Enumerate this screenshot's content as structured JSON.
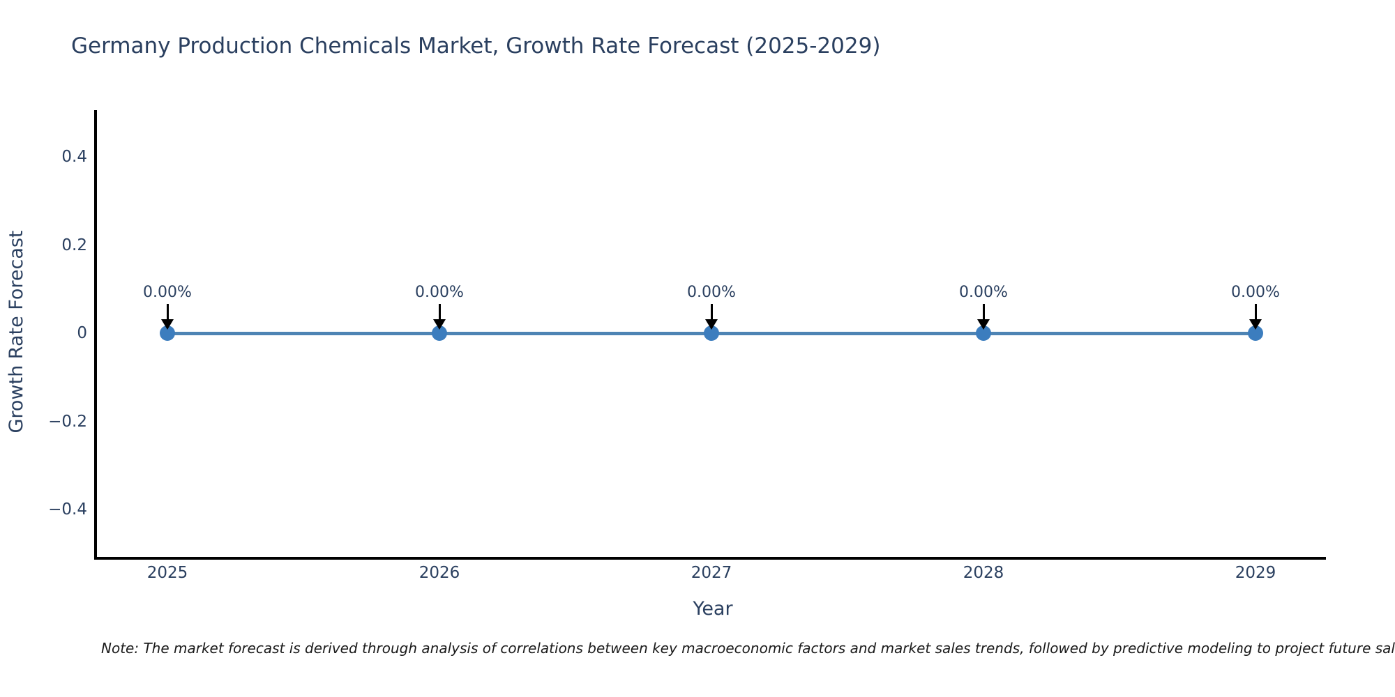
{
  "chart": {
    "title": "Germany Production Chemicals Market, Growth Rate Forecast (2025-2029)",
    "xlabel": "Year",
    "ylabel": "Growth Rate Forecast",
    "note": "Note: The market forecast is derived through analysis of correlations between key macroeconomic factors and market sales trends, followed by predictive modeling to project future sales.",
    "colors": {
      "line": "#4e84b4",
      "marker": "#3c7dbe",
      "axis": "#000000",
      "text": "#2a3f5f",
      "note_text": "#1a1a1a",
      "background": "#ffffff"
    }
  },
  "chart_data": {
    "type": "line",
    "title": "Germany Production Chemicals Market, Growth Rate Forecast (2025-2029)",
    "xlabel": "Year",
    "ylabel": "Growth Rate Forecast",
    "x": [
      2025,
      2026,
      2027,
      2028,
      2029
    ],
    "series": [
      {
        "name": "Growth Rate Forecast",
        "values": [
          0,
          0,
          0,
          0,
          0
        ]
      }
    ],
    "point_labels": [
      "0.00%",
      "0.00%",
      "0.00%",
      "0.00%",
      "0.00%"
    ],
    "xticks": [
      "2025",
      "2026",
      "2027",
      "2028",
      "2029"
    ],
    "yticks": [
      0.4,
      0.2,
      0,
      -0.2,
      -0.4
    ],
    "ytick_labels": [
      "0.4",
      "0.2",
      "0",
      "−0.2",
      "−0.4"
    ],
    "ylim": [
      -0.51,
      0.51
    ],
    "grid": false,
    "legend": "none",
    "marker_style": "circle",
    "annotation_arrows": "down",
    "footnote": "Note: The market forecast is derived through analysis of correlations between key macroeconomic factors and market sales trends, followed by predictive modeling to project future sales."
  }
}
